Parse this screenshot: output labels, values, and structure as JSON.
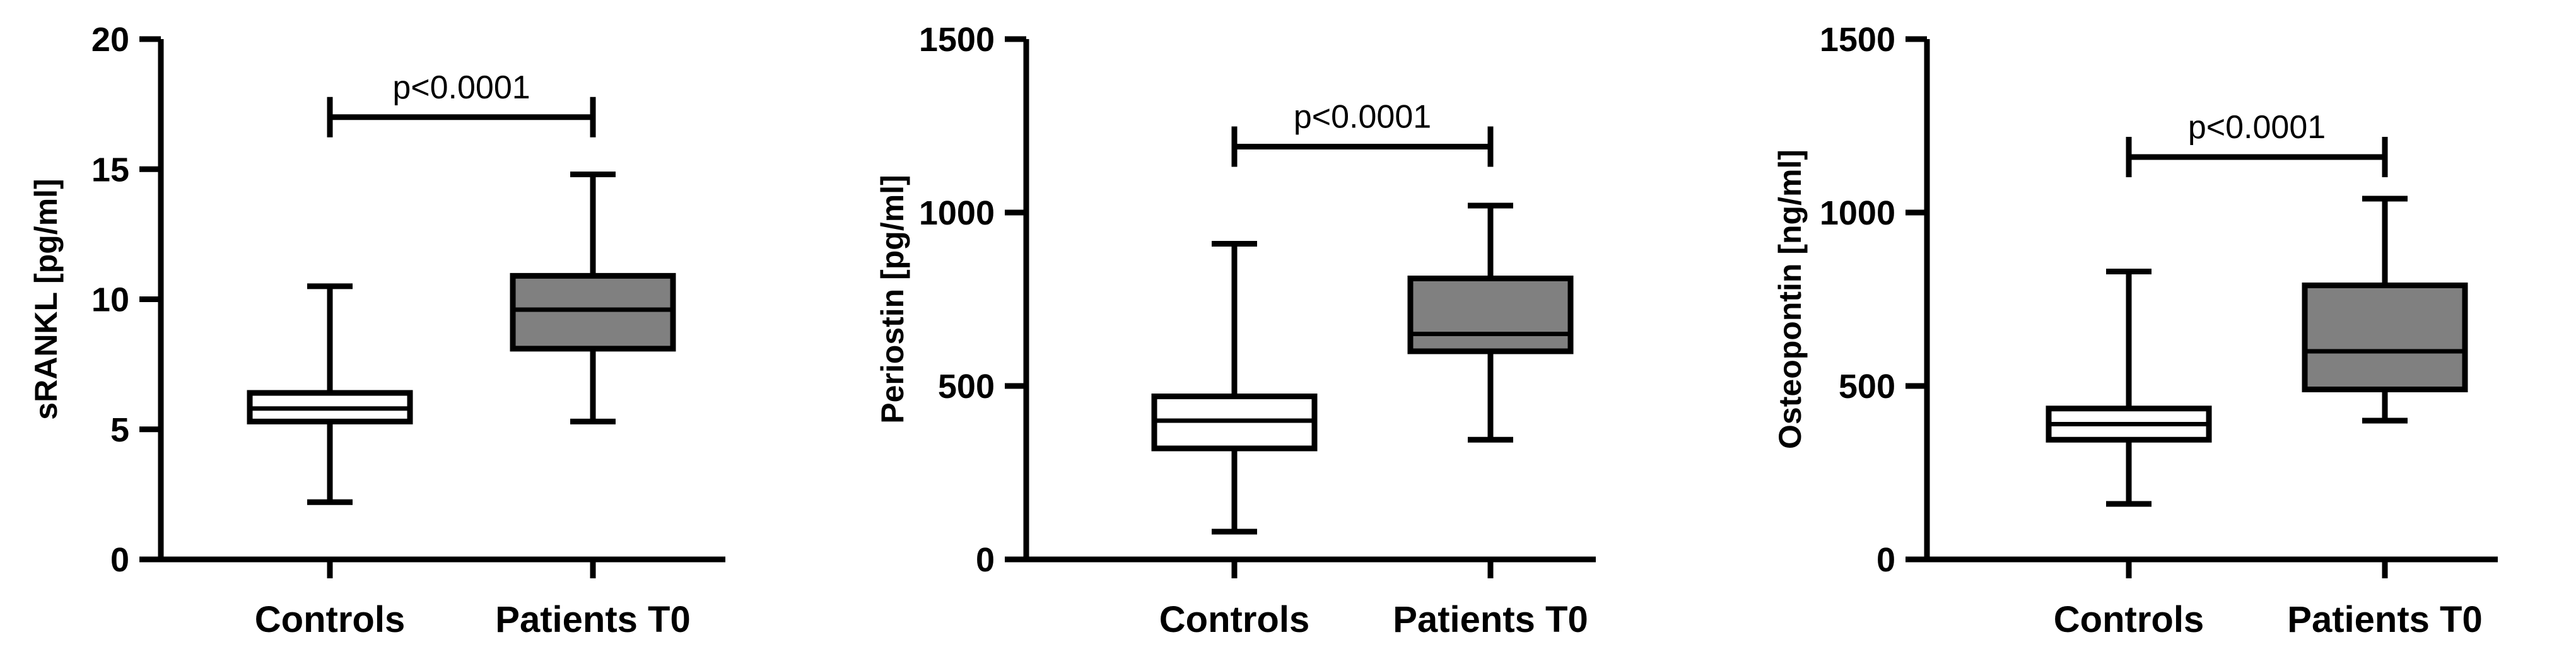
{
  "chart_data": [
    {
      "type": "box",
      "ylabel": "sRANKL [pg/ml]",
      "ylim": [
        0,
        20
      ],
      "yticks": [
        0,
        5,
        10,
        15,
        20
      ],
      "categories": [
        "Controls",
        "Patients T0"
      ],
      "boxes": [
        {
          "category": "Controls",
          "min": 2.2,
          "q1": 5.3,
          "median": 5.8,
          "q3": 6.4,
          "max": 10.5,
          "fill": "#ffffff"
        },
        {
          "category": "Patients T0",
          "min": 5.3,
          "q1": 8.1,
          "median": 9.6,
          "q3": 10.9,
          "max": 14.8,
          "fill": "#808080"
        }
      ],
      "significance": {
        "label": "p<0.0001",
        "level": 17.0
      }
    },
    {
      "type": "box",
      "ylabel": "Periostin [pg/ml]",
      "ylim": [
        0,
        1500
      ],
      "yticks": [
        0,
        500,
        1000,
        1500
      ],
      "categories": [
        "Controls",
        "Patients T0"
      ],
      "boxes": [
        {
          "category": "Controls",
          "min": 80,
          "q1": 320,
          "median": 400,
          "q3": 470,
          "max": 910,
          "fill": "#ffffff"
        },
        {
          "category": "Patients T0",
          "min": 345,
          "q1": 600,
          "median": 650,
          "q3": 810,
          "max": 1020,
          "fill": "#808080"
        }
      ],
      "significance": {
        "label": "p<0.0001",
        "level": 1190
      }
    },
    {
      "type": "box",
      "ylabel": "Osteopontin [ng/ml]",
      "ylim": [
        0,
        1500
      ],
      "yticks": [
        0,
        500,
        1000,
        1500
      ],
      "categories": [
        "Controls",
        "Patients T0"
      ],
      "boxes": [
        {
          "category": "Controls",
          "min": 160,
          "q1": 345,
          "median": 390,
          "q3": 435,
          "max": 830,
          "fill": "#ffffff"
        },
        {
          "category": "Patients T0",
          "min": 400,
          "q1": 490,
          "median": 600,
          "q3": 790,
          "max": 1040,
          "fill": "#808080"
        }
      ],
      "significance": {
        "label": "p<0.0001",
        "level": 1160
      }
    }
  ]
}
